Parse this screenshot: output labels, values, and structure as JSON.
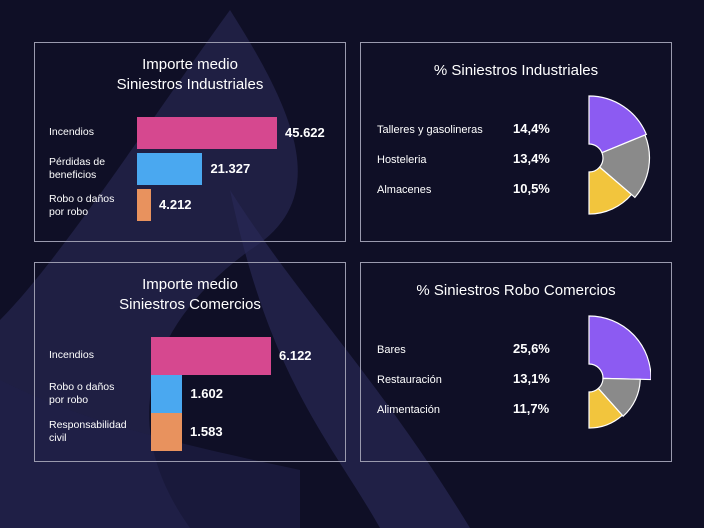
{
  "theme": {
    "background": "#0f0f26",
    "panel_border": "#9a9aae",
    "bar_colors": [
      "#d6488f",
      "#4aa8f0",
      "#e8925e"
    ],
    "fan_colors": [
      "#8c5bf2",
      "#8a8a8a",
      "#f2c53d"
    ]
  },
  "chart_data": [
    {
      "type": "bar",
      "orientation": "horizontal",
      "title": "Importe medio\nSiniestros Industriales",
      "categories": [
        "Incendios",
        "Pérdidas de\nbeneficios",
        "Robo o daños\npor robo"
      ],
      "values": [
        45622,
        21327,
        4212
      ],
      "value_labels": [
        "45.622",
        "21.327",
        "4.212"
      ]
    },
    {
      "type": "pie",
      "title": "% Siniestros Industriales",
      "categories": [
        "Talleres y gasolineras",
        "Hosteleria",
        "Almacenes"
      ],
      "values": [
        14.4,
        13.4,
        10.5
      ],
      "value_labels": [
        "14,4%",
        "13,4%",
        "10,5%"
      ]
    },
    {
      "type": "bar",
      "orientation": "horizontal",
      "title": "Importe medio\nSiniestros Comercios",
      "categories": [
        "Incendios",
        "Robo o daños\npor robo",
        "Responsabilidad\ncivil"
      ],
      "values": [
        6122,
        1602,
        1583
      ],
      "value_labels": [
        "6.122",
        "1.602",
        "1.583"
      ]
    },
    {
      "type": "pie",
      "title": "% Siniestros Robo Comercios",
      "categories": [
        "Bares",
        "Restauración",
        "Alimentación"
      ],
      "values": [
        25.6,
        13.1,
        11.7
      ],
      "value_labels": [
        "25,6%",
        "13,1%",
        "11,7%"
      ]
    }
  ]
}
